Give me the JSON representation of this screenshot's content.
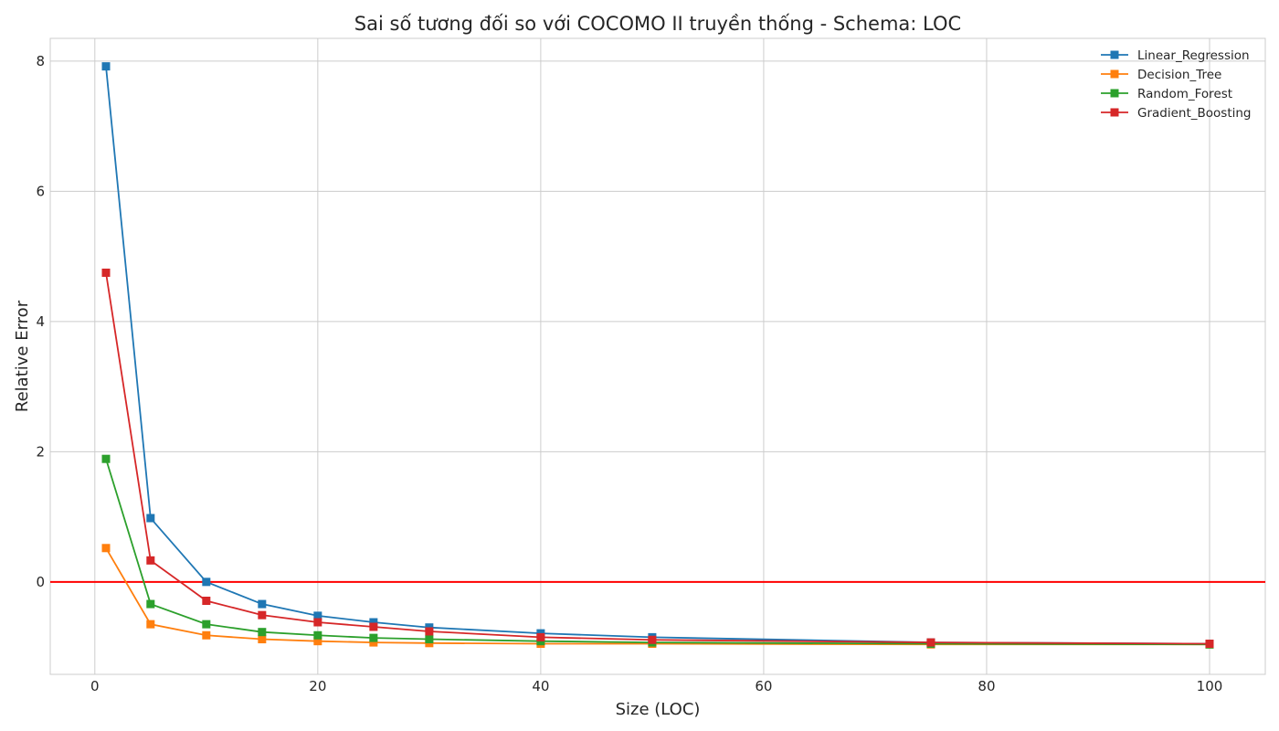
{
  "chart_data": {
    "type": "line",
    "title": "Sai số tương đối so với COCOMO II truyền thống - Schema: LOC",
    "xlabel": "Size (LOC)",
    "ylabel": "Relative Error",
    "xlim": [
      -4,
      105
    ],
    "ylim": [
      -1.42,
      8.35
    ],
    "xticks": [
      0,
      20,
      40,
      60,
      80,
      100
    ],
    "yticks": [
      0,
      2,
      4,
      6,
      8
    ],
    "grid": true,
    "legend_position": "top-right",
    "reference_line": {
      "y": 0,
      "color": "#ff0000"
    },
    "x": [
      1,
      5,
      10,
      15,
      20,
      25,
      30,
      40,
      50,
      75,
      100
    ],
    "series": [
      {
        "name": "Linear_Regression",
        "color": "#1f77b4",
        "values": [
          7.92,
          0.98,
          0.0,
          -0.34,
          -0.52,
          -0.62,
          -0.7,
          -0.79,
          -0.85,
          -0.93,
          -0.95
        ]
      },
      {
        "name": "Decision_Tree",
        "color": "#ff7f0e",
        "values": [
          0.52,
          -0.65,
          -0.82,
          -0.88,
          -0.91,
          -0.93,
          -0.94,
          -0.95,
          -0.95,
          -0.96,
          -0.96
        ]
      },
      {
        "name": "Random_Forest",
        "color": "#2ca02c",
        "values": [
          1.89,
          -0.34,
          -0.65,
          -0.77,
          -0.82,
          -0.86,
          -0.88,
          -0.91,
          -0.93,
          -0.95,
          -0.96
        ]
      },
      {
        "name": "Gradient_Boosting",
        "color": "#d62728",
        "values": [
          4.75,
          0.33,
          -0.29,
          -0.51,
          -0.62,
          -0.69,
          -0.76,
          -0.85,
          -0.89,
          -0.93,
          -0.95
        ]
      }
    ]
  }
}
